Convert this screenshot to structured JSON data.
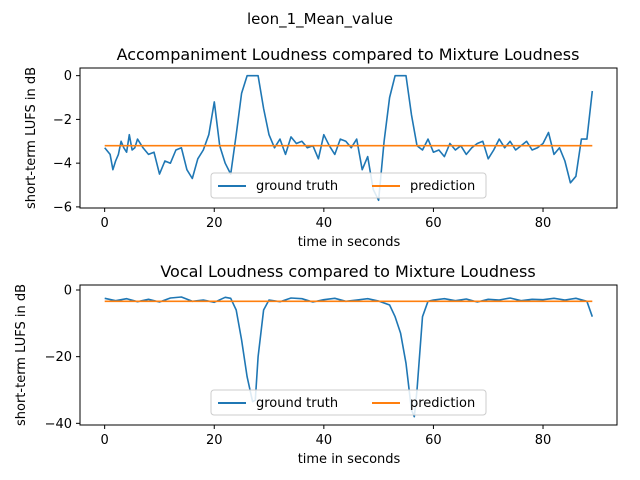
{
  "suptitle": "leon_1_Mean_value",
  "colors": {
    "ground_truth": "#1f77b4",
    "prediction": "#ff7f0e"
  },
  "chart_data": [
    {
      "type": "line",
      "title": "Accompaniment Loudness compared to Mixture Loudness",
      "xlabel": "time in seconds",
      "ylabel": "short-term LUFS in dB",
      "xlim": [
        -4.5,
        93.5
      ],
      "ylim": [
        -6.05,
        0.35
      ],
      "xticks": [
        0,
        20,
        40,
        60,
        80
      ],
      "xtick_labels": [
        "0",
        "20",
        "40",
        "60",
        "80"
      ],
      "yticks": [
        0,
        -2,
        -4,
        -6
      ],
      "ytick_labels": [
        "0",
        "−2",
        "−4",
        "−6"
      ],
      "legend": "lower center",
      "grid": false,
      "series": [
        {
          "name": "ground truth",
          "x": [
            0,
            1,
            1.5,
            2,
            2.5,
            3,
            3.5,
            4,
            4.5,
            5,
            5.5,
            6,
            7,
            8,
            9,
            10,
            11,
            12,
            13,
            14,
            15,
            16,
            17,
            18,
            19,
            20,
            21,
            22,
            23,
            24,
            25,
            26,
            27,
            28,
            29,
            30,
            31,
            32,
            33,
            34,
            35,
            36,
            37,
            38,
            39,
            40,
            41,
            42,
            43,
            44,
            45,
            46,
            47,
            48,
            49,
            50,
            51,
            52,
            53,
            54,
            55,
            56,
            57,
            58,
            59,
            60,
            61,
            62,
            63,
            64,
            65,
            66,
            67,
            68,
            69,
            70,
            71,
            72,
            73,
            74,
            75,
            76,
            77,
            78,
            79,
            80,
            81,
            82,
            83,
            84,
            85,
            86,
            87,
            88,
            89
          ],
          "y": [
            -3.3,
            -3.6,
            -4.3,
            -3.9,
            -3.6,
            -3.0,
            -3.3,
            -3.5,
            -2.7,
            -3.4,
            -3.3,
            -2.9,
            -3.3,
            -3.6,
            -3.5,
            -4.5,
            -3.9,
            -4.0,
            -3.4,
            -3.3,
            -4.3,
            -4.7,
            -3.8,
            -3.4,
            -2.7,
            -1.2,
            -3.2,
            -4.0,
            -4.5,
            -2.7,
            -0.8,
            0.0,
            0.0,
            0.0,
            -1.5,
            -2.7,
            -3.3,
            -2.9,
            -3.6,
            -2.8,
            -3.1,
            -3.0,
            -3.3,
            -3.2,
            -3.8,
            -2.7,
            -3.2,
            -3.6,
            -2.9,
            -3.0,
            -3.3,
            -2.9,
            -4.3,
            -3.7,
            -5.2,
            -5.7,
            -3.0,
            -1.0,
            0.0,
            0.0,
            0.0,
            -1.8,
            -3.2,
            -3.4,
            -2.9,
            -3.5,
            -3.4,
            -3.7,
            -3.1,
            -3.4,
            -3.2,
            -3.6,
            -3.3,
            -3.1,
            -3.0,
            -3.8,
            -3.4,
            -2.9,
            -3.3,
            -3.0,
            -3.4,
            -3.2,
            -3.0,
            -3.4,
            -3.3,
            -3.1,
            -2.6,
            -3.6,
            -3.3,
            -3.9,
            -4.9,
            -4.6,
            -2.9,
            -2.9,
            -0.7
          ]
        },
        {
          "name": "prediction",
          "x": [
            0,
            89
          ],
          "y": [
            -3.2,
            -3.2
          ]
        }
      ]
    },
    {
      "type": "line",
      "title": "Vocal Loudness compared to Mixture Loudness",
      "xlabel": "time in seconds",
      "ylabel": "short-term LUFS in dB",
      "xlim": [
        -4.5,
        93.5
      ],
      "ylim": [
        -40.5,
        1.5
      ],
      "xticks": [
        0,
        20,
        40,
        60,
        80
      ],
      "xtick_labels": [
        "0",
        "20",
        "40",
        "60",
        "80"
      ],
      "yticks": [
        0,
        -20,
        -40
      ],
      "ytick_labels": [
        "0",
        "−20",
        "−40"
      ],
      "legend": "lower center",
      "grid": false,
      "series": [
        {
          "name": "ground truth",
          "x": [
            0,
            2,
            4,
            6,
            8,
            10,
            12,
            14,
            16,
            18,
            20,
            22,
            23,
            24,
            25,
            26,
            27,
            27.5,
            28,
            29,
            30,
            32,
            34,
            36,
            38,
            40,
            42,
            44,
            46,
            48,
            50,
            52,
            53,
            54,
            55,
            56,
            56.5,
            57,
            58,
            59,
            60,
            62,
            64,
            66,
            68,
            70,
            72,
            74,
            76,
            78,
            80,
            82,
            84,
            86,
            88,
            89
          ],
          "y": [
            -2.5,
            -3.2,
            -2.6,
            -3.5,
            -2.8,
            -3.6,
            -2.4,
            -2.1,
            -3.4,
            -3.0,
            -3.7,
            -2.2,
            -2.5,
            -6.0,
            -15.0,
            -26.0,
            -33.5,
            -33.0,
            -20.0,
            -6.0,
            -3.0,
            -3.5,
            -2.4,
            -2.6,
            -3.6,
            -2.9,
            -2.5,
            -3.4,
            -3.0,
            -2.6,
            -3.3,
            -4.5,
            -8.0,
            -13.0,
            -22.0,
            -36.0,
            -38.0,
            -30.0,
            -8.0,
            -3.4,
            -3.0,
            -2.6,
            -3.2,
            -2.7,
            -3.6,
            -2.8,
            -3.0,
            -2.4,
            -3.2,
            -2.8,
            -2.9,
            -2.5,
            -3.0,
            -2.5,
            -3.4,
            -8.0
          ]
        },
        {
          "name": "prediction",
          "x": [
            0,
            89
          ],
          "y": [
            -3.4,
            -3.4
          ]
        }
      ]
    }
  ]
}
